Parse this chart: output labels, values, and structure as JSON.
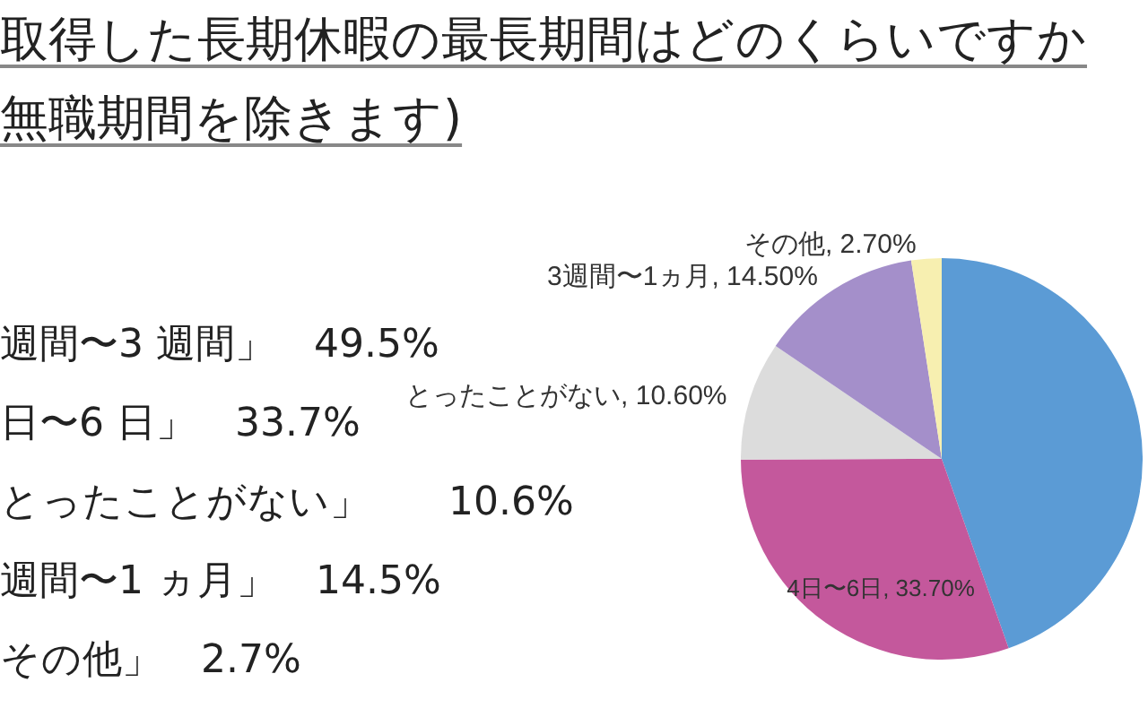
{
  "chart_data": {
    "type": "pie",
    "title": "取得した長期休暇の最長期間はどのくらいですか",
    "subtitle": "無職期間を除きます)",
    "categories": [
      null,
      "4日〜6日",
      "とったことがない",
      "3週間〜1ヵ月",
      "その他"
    ],
    "values": [
      49.5,
      33.7,
      10.6,
      14.5,
      2.7
    ],
    "colors": [
      "#5b9bd5",
      "#c4589c",
      "#dcdcdc",
      "#a48fca",
      "#f7efb0"
    ],
    "value_labels": [
      null,
      "33.70%",
      "10.60%",
      "14.50%",
      "2.70%"
    ],
    "annotations": [
      "週間〜3 週間」　49.5%",
      "日〜6 日」　33.7%",
      "とったことがない」　　10.6%",
      "週間〜1 ヵ月」　14.5%",
      "その他」　2.7%"
    ]
  }
}
